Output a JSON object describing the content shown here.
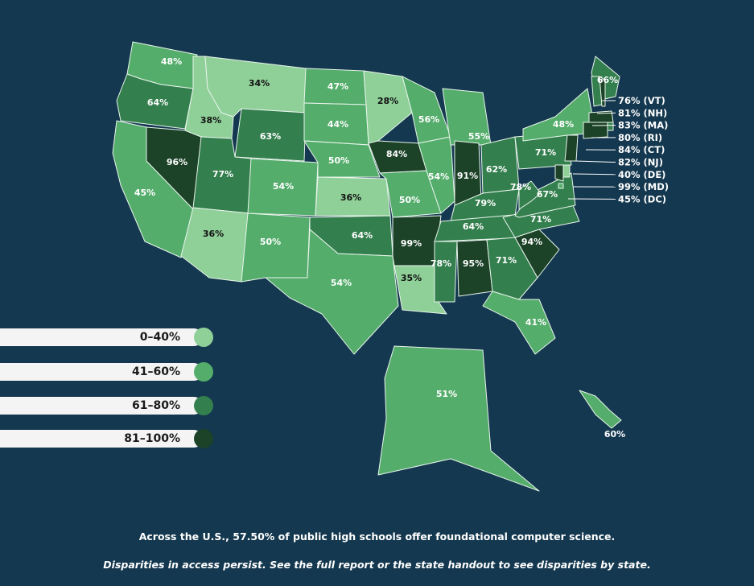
{
  "colors": {
    "background": "#14384f",
    "tier_0_40": "#8fcf98",
    "tier_41_60": "#55ad6c",
    "tier_61_80": "#347f4e",
    "tier_81_100": "#1c4228",
    "border": "#e8f5ec"
  },
  "legend": [
    {
      "label": "0–40%",
      "tier": "tier_0_40"
    },
    {
      "label": "41–60%",
      "tier": "tier_41_60"
    },
    {
      "label": "61–80%",
      "tier": "tier_61_80"
    },
    {
      "label": "81–100%",
      "tier": "tier_81_100"
    }
  ],
  "states": [
    {
      "code": "WA",
      "value": "48%",
      "tier": "tier_41_60"
    },
    {
      "code": "OR",
      "value": "64%",
      "tier": "tier_61_80"
    },
    {
      "code": "CA",
      "value": "45%",
      "tier": "tier_41_60"
    },
    {
      "code": "NV",
      "value": "96%",
      "tier": "tier_81_100"
    },
    {
      "code": "ID",
      "value": "38%",
      "tier": "tier_0_40"
    },
    {
      "code": "MT",
      "value": "34%",
      "tier": "tier_0_40"
    },
    {
      "code": "WY",
      "value": "63%",
      "tier": "tier_61_80"
    },
    {
      "code": "UT",
      "value": "77%",
      "tier": "tier_61_80"
    },
    {
      "code": "AZ",
      "value": "36%",
      "tier": "tier_0_40"
    },
    {
      "code": "CO",
      "value": "54%",
      "tier": "tier_41_60"
    },
    {
      "code": "NM",
      "value": "50%",
      "tier": "tier_41_60"
    },
    {
      "code": "ND",
      "value": "47%",
      "tier": "tier_41_60"
    },
    {
      "code": "SD",
      "value": "44%",
      "tier": "tier_41_60"
    },
    {
      "code": "NE",
      "value": "50%",
      "tier": "tier_41_60"
    },
    {
      "code": "KS",
      "value": "36%",
      "tier": "tier_0_40"
    },
    {
      "code": "OK",
      "value": "64%",
      "tier": "tier_61_80"
    },
    {
      "code": "TX",
      "value": "54%",
      "tier": "tier_41_60"
    },
    {
      "code": "MN",
      "value": "28%",
      "tier": "tier_0_40"
    },
    {
      "code": "IA",
      "value": "84%",
      "tier": "tier_81_100"
    },
    {
      "code": "MO",
      "value": "50%",
      "tier": "tier_41_60"
    },
    {
      "code": "AR",
      "value": "99%",
      "tier": "tier_81_100"
    },
    {
      "code": "LA",
      "value": "35%",
      "tier": "tier_0_40"
    },
    {
      "code": "WI",
      "value": "56%",
      "tier": "tier_41_60"
    },
    {
      "code": "IL",
      "value": "54%",
      "tier": "tier_41_60"
    },
    {
      "code": "MI",
      "value": "55%",
      "tier": "tier_41_60"
    },
    {
      "code": "IN",
      "value": "91%",
      "tier": "tier_81_100"
    },
    {
      "code": "OH",
      "value": "62%",
      "tier": "tier_61_80"
    },
    {
      "code": "KY",
      "value": "79%",
      "tier": "tier_61_80"
    },
    {
      "code": "TN",
      "value": "64%",
      "tier": "tier_61_80"
    },
    {
      "code": "MS",
      "value": "78%",
      "tier": "tier_61_80"
    },
    {
      "code": "AL",
      "value": "95%",
      "tier": "tier_81_100"
    },
    {
      "code": "GA",
      "value": "71%",
      "tier": "tier_61_80"
    },
    {
      "code": "FL",
      "value": "41%",
      "tier": "tier_41_60"
    },
    {
      "code": "SC",
      "value": "94%",
      "tier": "tier_81_100"
    },
    {
      "code": "NC",
      "value": "71%",
      "tier": "tier_61_80"
    },
    {
      "code": "VA",
      "value": "67%",
      "tier": "tier_61_80"
    },
    {
      "code": "WV",
      "value": "78%",
      "tier": "tier_61_80"
    },
    {
      "code": "PA",
      "value": "71%",
      "tier": "tier_61_80"
    },
    {
      "code": "NY",
      "value": "48%",
      "tier": "tier_41_60"
    },
    {
      "code": "ME",
      "value": "66%",
      "tier": "tier_61_80"
    },
    {
      "code": "AK",
      "value": "51%",
      "tier": "tier_41_60"
    },
    {
      "code": "HI",
      "value": "60%",
      "tier": "tier_41_60"
    }
  ],
  "callouts": [
    {
      "text": "76%  (VT)",
      "tier": "tier_61_80"
    },
    {
      "text": "81%  (NH)",
      "tier": "tier_81_100"
    },
    {
      "text": "83%  (MA)",
      "tier": "tier_81_100"
    },
    {
      "text": "80%  (RI)",
      "tier": "tier_61_80"
    },
    {
      "text": "84%  (CT)",
      "tier": "tier_81_100"
    },
    {
      "text": "82%  (NJ)",
      "tier": "tier_81_100"
    },
    {
      "text": "40%  (DE)",
      "tier": "tier_0_40"
    },
    {
      "text": "99%  (MD)",
      "tier": "tier_81_100"
    },
    {
      "text": "45%  (DC)",
      "tier": "tier_41_60"
    }
  ],
  "footer": {
    "line1": "Across the U.S., 57.50% of public high schools offer foundational computer science.",
    "line2": "Disparities in access persist. See the full report or the state handout to see disparities by state."
  }
}
